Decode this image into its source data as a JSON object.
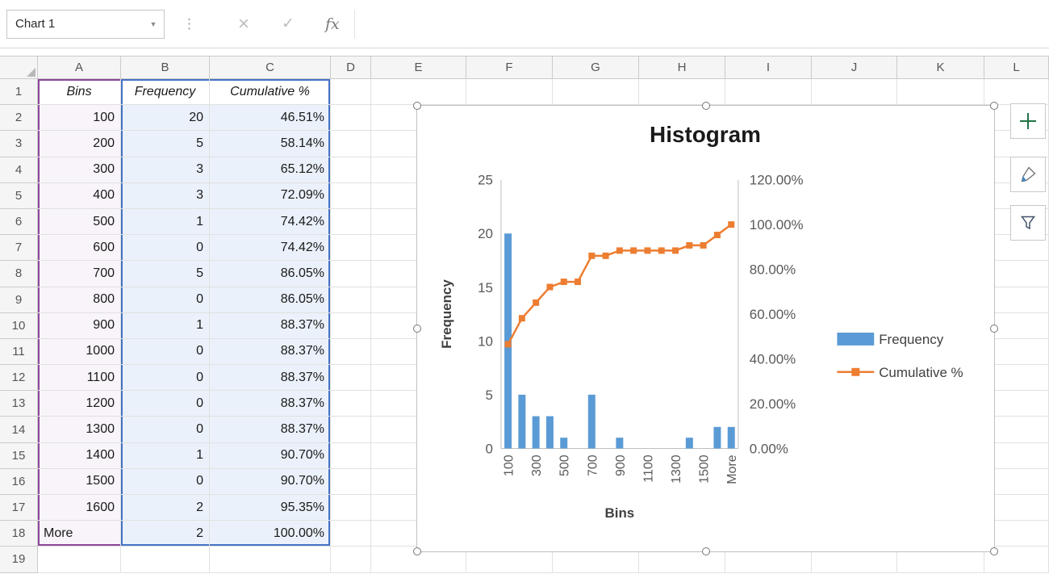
{
  "formula_bar": {
    "name_box": "Chart 1",
    "fx_label": "fx",
    "formula": ""
  },
  "icons": {
    "dropdown": "▼",
    "dots": "⋮",
    "cancel": "×",
    "enter": "✓"
  },
  "sheet": {
    "col_headers": [
      "A",
      "B",
      "C",
      "D",
      "E",
      "F",
      "G",
      "H",
      "I",
      "J",
      "K",
      "L"
    ],
    "row_count": 19,
    "highlights": {
      "category": {
        "border": "#8c4799",
        "fill": "#f8f4fa"
      },
      "series": {
        "border": "#4472c4",
        "fill": "#eaf1fa"
      }
    },
    "table": {
      "headers": [
        "Bins",
        "Frequency",
        "Cumulative %"
      ],
      "bins": [
        "100",
        "200",
        "300",
        "400",
        "500",
        "600",
        "700",
        "800",
        "900",
        "1000",
        "1100",
        "1200",
        "1300",
        "1400",
        "1500",
        "1600",
        "More"
      ],
      "frequency": [
        "20",
        "5",
        "3",
        "3",
        "1",
        "0",
        "5",
        "0",
        "1",
        "0",
        "0",
        "0",
        "0",
        "1",
        "0",
        "2",
        "2"
      ],
      "cumulative": [
        "46.51%",
        "58.14%",
        "65.12%",
        "72.09%",
        "74.42%",
        "74.42%",
        "86.05%",
        "86.05%",
        "88.37%",
        "88.37%",
        "88.37%",
        "88.37%",
        "88.37%",
        "90.70%",
        "90.70%",
        "95.35%",
        "100.00%"
      ]
    }
  },
  "chart_data": {
    "type": "combo",
    "title": "Histogram",
    "xlabel": "Bins",
    "ylabel_left": "Frequency",
    "legend_position": "right",
    "grid": false,
    "categories": [
      "100",
      "200",
      "300",
      "400",
      "500",
      "600",
      "700",
      "800",
      "900",
      "1000",
      "1100",
      "1200",
      "1300",
      "1400",
      "1500",
      "1600",
      "More"
    ],
    "x_tick_labels_shown": [
      "100",
      "300",
      "500",
      "700",
      "900",
      "1100",
      "1300",
      "1500",
      "More"
    ],
    "left_axis": {
      "min": 0,
      "max": 25,
      "step": 5,
      "ticks": [
        "0",
        "5",
        "10",
        "15",
        "20",
        "25"
      ]
    },
    "right_axis": {
      "min": 0,
      "max": 120,
      "step": 20,
      "ticks": [
        "0.00%",
        "20.00%",
        "40.00%",
        "60.00%",
        "80.00%",
        "100.00%",
        "120.00%"
      ]
    },
    "series": [
      {
        "name": "Frequency",
        "type": "bar",
        "axis": "left",
        "color": "#5B9BD5",
        "values": [
          20,
          5,
          3,
          3,
          1,
          0,
          5,
          0,
          1,
          0,
          0,
          0,
          0,
          1,
          0,
          2,
          2
        ]
      },
      {
        "name": "Cumulative %",
        "type": "line",
        "axis": "right",
        "color": "#ED7D31",
        "values": [
          46.51,
          58.14,
          65.12,
          72.09,
          74.42,
          74.42,
          86.05,
          86.05,
          88.37,
          88.37,
          88.37,
          88.37,
          88.37,
          90.7,
          90.7,
          95.35,
          100.0
        ]
      }
    ]
  }
}
